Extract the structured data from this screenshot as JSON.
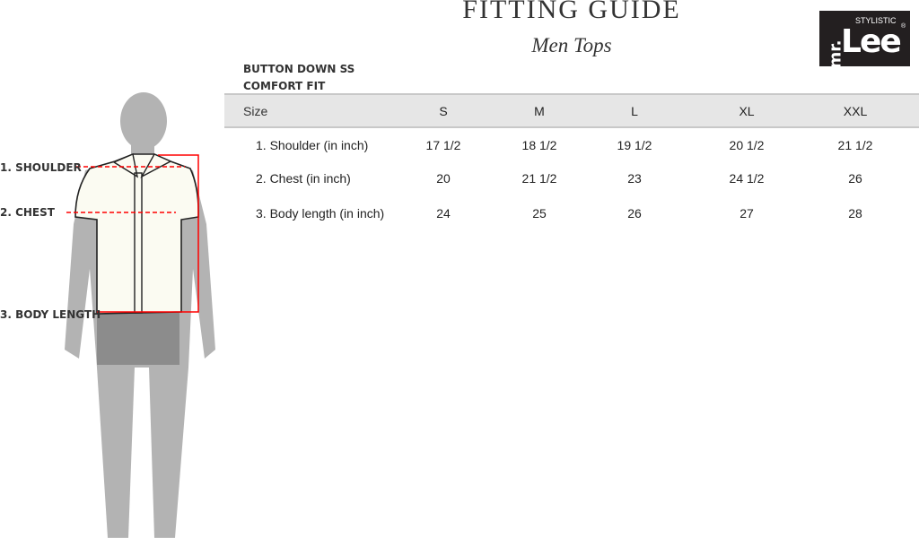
{
  "header": {
    "title": "FITTING GUIDE",
    "subtitle": "Men Tops"
  },
  "logo": {
    "text_small": "STYLISTIC",
    "text_mr": "mr.",
    "text_main": "Lee",
    "registered": "®",
    "bg": "#231f20"
  },
  "product": {
    "line1": "BUTTON DOWN SS",
    "line2": "COMFORT FIT"
  },
  "table": {
    "columns": [
      "Size",
      "S",
      "M",
      "L",
      "XL",
      "XXL"
    ],
    "rows": [
      {
        "label": "1. Shoulder (in inch)",
        "values": [
          "17 1/2",
          "18 1/2",
          "19 1/2",
          "20 1/2",
          "21 1/2"
        ]
      },
      {
        "label": "2. Chest (in inch)",
        "values": [
          "20",
          "21 1/2",
          "23",
          "24 1/2",
          "26"
        ]
      },
      {
        "label": "3. Body length (in inch)",
        "values": [
          "24",
          "25",
          "26",
          "27",
          "28"
        ]
      }
    ]
  },
  "figure": {
    "labels": [
      "1. SHOULDER",
      "2. CHEST",
      "3. BODY LENGTH"
    ],
    "measure_color": "#ff0000"
  }
}
